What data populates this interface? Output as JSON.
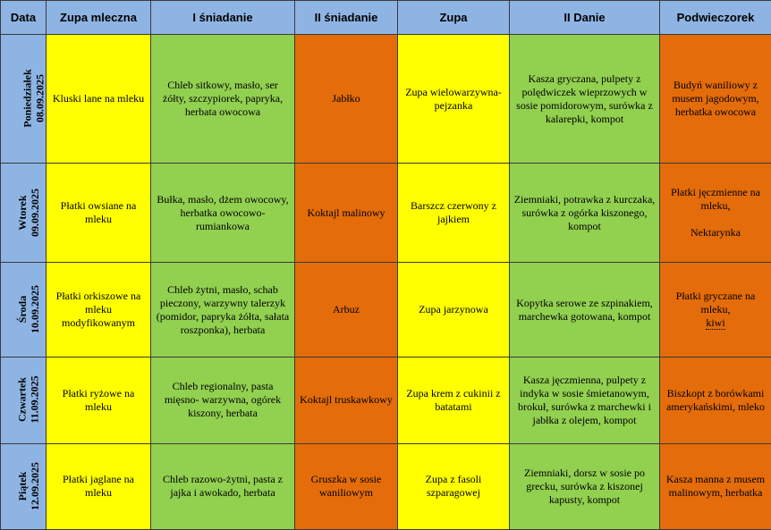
{
  "colors": {
    "header_bg": "#8EB4E3",
    "yellow": "#FFFF00",
    "green": "#92D050",
    "orange": "#E46C0A"
  },
  "headers": [
    "Data",
    "Zupa mleczna",
    "I śniadanie",
    "II śniadanie",
    "Zupa",
    "II Danie",
    "Podwieczorek"
  ],
  "days": [
    {
      "day": "Poniedziałek",
      "date": "08.09.2025",
      "zupa_mleczna": "Kluski lane na mleku",
      "i_sniadanie": "Chleb sitkowy, masło, ser żółty, szczypiorek, papryka, herbata owocowa",
      "ii_sniadanie": "Jabłko",
      "zupa": "Zupa wielowarzywna-pejzanka",
      "ii_danie": "Kasza gryczana, pulpety z polędwiczek wieprzowych w sosie pomidorowym, surówka z kalarepki, kompot",
      "podwieczorek": "Budyń waniliowy z musem jagodowym, herbatka owocowa"
    },
    {
      "day": "Wtorek",
      "date": "09.09.2025",
      "zupa_mleczna": "Płatki owsiane na mleku",
      "i_sniadanie": "Bułka, masło, dżem owocowy, herbatka owocowo-rumiankowa",
      "ii_sniadanie": "Koktajl malinowy",
      "zupa": "Barszcz czerwony z jajkiem",
      "ii_danie": "Ziemniaki, potrawka z kurczaka, surówka z ogórka kiszonego, kompot",
      "podwieczorek": "Płatki jęczmienne na mleku,",
      "podwieczorek_extra": "Nektarynka"
    },
    {
      "day": "Środa",
      "date": "10.09.2025",
      "zupa_mleczna": "Płatki orkiszowe na mleku modyfikowanym",
      "i_sniadanie": "Chleb żytni, masło, schab pieczony, warzywny talerzyk (pomidor, papryka żółta, sałata roszponka), herbata",
      "ii_sniadanie": "Arbuz",
      "zupa": "Zupa jarzynowa",
      "ii_danie": "Kopytka serowe ze szpinakiem, marchewka gotowana, kompot",
      "podwieczorek": "Płatki gryczane na mleku,",
      "podwieczorek_extra": "kiwi"
    },
    {
      "day": "Czwartek",
      "date": "11.09.2025",
      "zupa_mleczna": "Płatki ryżowe na mleku",
      "i_sniadanie": "Chleb regionalny, pasta mięsno- warzywna, ogórek kiszony, herbata",
      "ii_sniadanie": "Koktajl truskawkowy",
      "zupa": "Zupa krem z cukinii z batatami",
      "ii_danie": "Kasza jęczmienna, pulpety z indyka w sosie śmietanowym, brokuł, surówka z marchewki i jabłka z olejem, kompot",
      "podwieczorek": "Biszkopt z borówkami amerykańskimi, mleko"
    },
    {
      "day": "Piątek",
      "date": "12.09.2025",
      "zupa_mleczna": "Płatki jaglane na mleku",
      "i_sniadanie": "Chleb razowo-żytni, pasta z jajka i awokado, herbata",
      "ii_sniadanie": "Gruszka w sosie waniliowym",
      "zupa": "Zupa z fasoli szparagowej",
      "ii_danie": "Ziemniaki, dorsz w sosie po grecku, surówka z kiszonej kapusty, kompot",
      "podwieczorek": "Kasza manna z musem malinowym, herbatka"
    }
  ]
}
